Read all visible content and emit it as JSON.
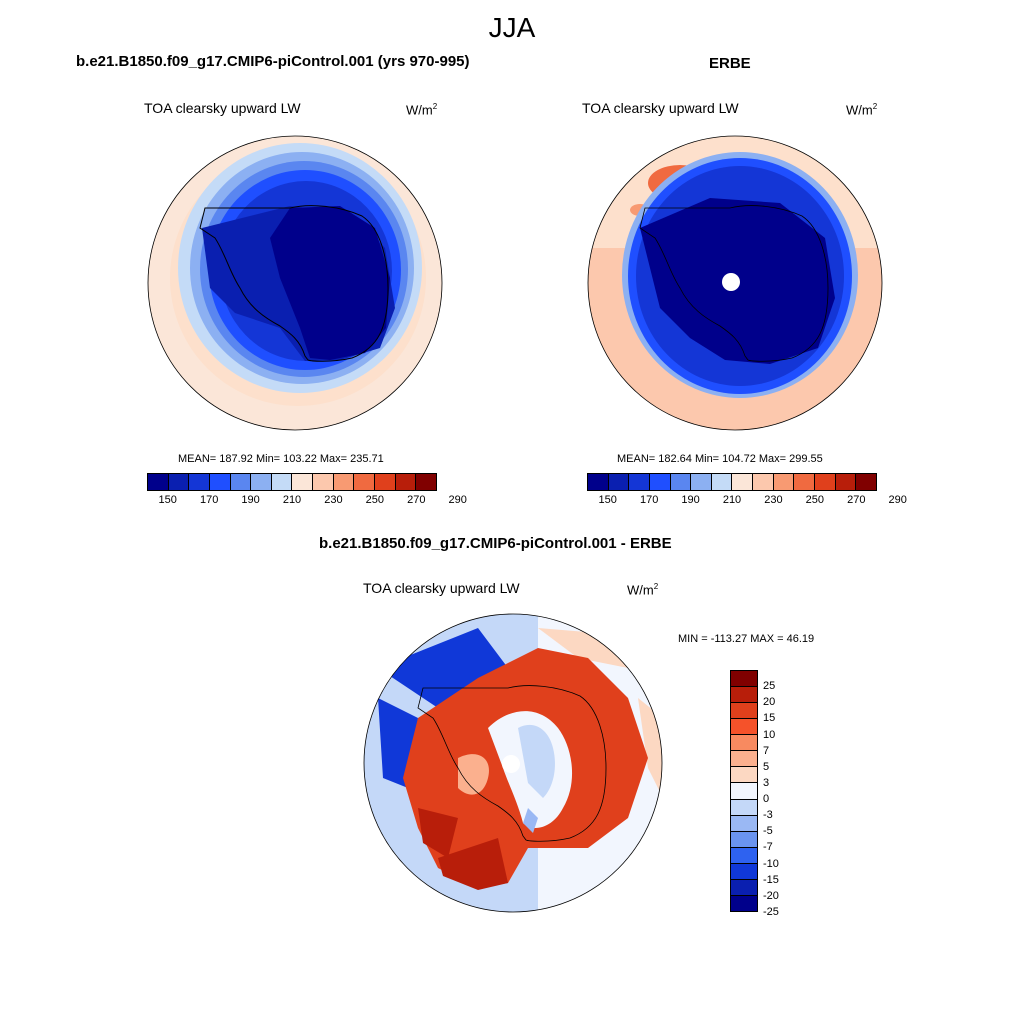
{
  "season": "JJA",
  "panels": {
    "model": {
      "title": "b.e21.B1850.f09_g17.CMIP6-piControl.001 (yrs 970-995)",
      "subtitle": "TOA clearsky upward LW",
      "unit": "W/m",
      "unit_sup": "2",
      "stats": "MEAN= 187.92  Min= 103.22  Max= 235.71"
    },
    "obs": {
      "title": "ERBE",
      "subtitle": "TOA clearsky upward LW",
      "unit": "W/m",
      "unit_sup": "2",
      "stats": "MEAN= 182.64  Min= 104.72  Max= 299.55"
    },
    "diff": {
      "title": "b.e21.B1850.f09_g17.CMIP6-piControl.001 - ERBE",
      "subtitle": "TOA clearsky upward LW",
      "unit": "W/m",
      "unit_sup": "2",
      "stats": "MIN = -113.27 MAX =  46.19"
    }
  },
  "colorbar_abs": {
    "colors": [
      "#00008b",
      "#0a1fb0",
      "#1436d6",
      "#1f4fff",
      "#5a86f0",
      "#8cb0f2",
      "#c4dbf7",
      "#fbe6d8",
      "#fcc8ad",
      "#f89a72",
      "#f06a40",
      "#e0401c",
      "#b81e0a",
      "#800000"
    ],
    "labels": [
      "150",
      "170",
      "190",
      "210",
      "230",
      "250",
      "270",
      "290"
    ]
  },
  "colorbar_diff": {
    "colors": [
      "#800000",
      "#b81e0a",
      "#e0401c",
      "#f5522a",
      "#f88a60",
      "#fbb08e",
      "#fcd8c2",
      "#f2f6fe",
      "#c4d8f8",
      "#9ab8f4",
      "#6a94f0",
      "#2e62f0",
      "#1038d8",
      "#0a1fb0",
      "#00008b"
    ],
    "labels": [
      "25",
      "20",
      "15",
      "10",
      "7",
      "5",
      "3",
      "0",
      "-3",
      "-5",
      "-7",
      "-10",
      "-15",
      "-20",
      "-25"
    ]
  },
  "map_regions": {
    "model": "Antarctica",
    "obs": "Antarctica",
    "diff": "Antarctica"
  }
}
